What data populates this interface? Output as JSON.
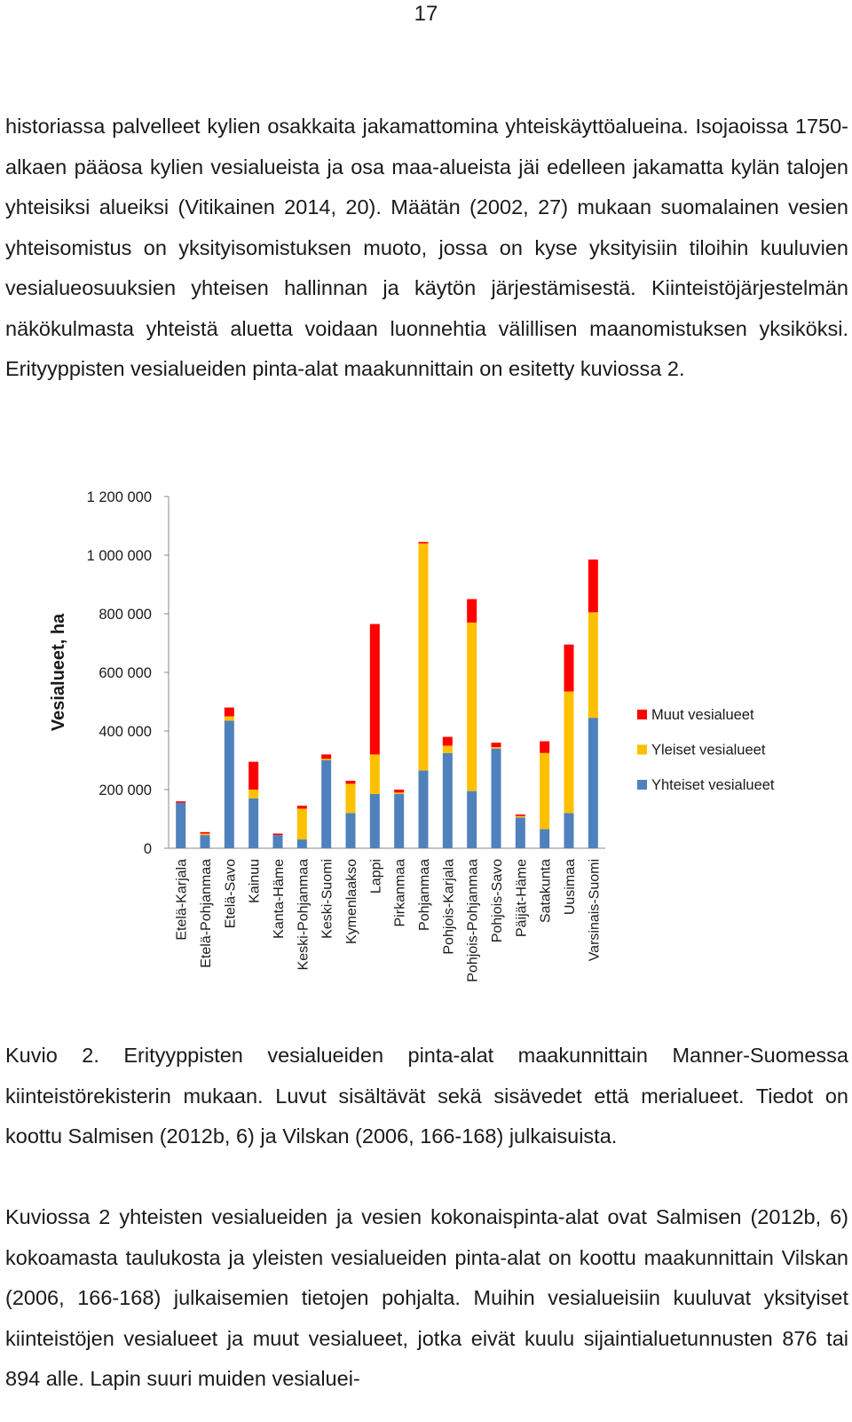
{
  "page_number": "17",
  "paragraph_1": "historiassa palvelleet kylien osakkaita jakamattomina yhteiskäyttöalueina. Isojaoissa 1750-alkaen pääosa kylien vesialueista ja osa maa-alueista jäi edelleen jakamatta kylän talojen yhteisiksi alueiksi (Vitikainen 2014, 20). Määtän (2002, 27) mukaan suomalainen vesien yhteisomistus on yksityisomistuksen muoto, jossa on kyse yksityisiin tiloihin kuuluvien vesialueosuuksien yhteisen hallinnan ja käytön järjestämisestä. Kiinteistöjärjestelmän näkökulmasta yhteistä aluetta voidaan luonnehtia välillisen maanomistuksen yksiköksi. Erityyppisten vesialueiden pinta-alat maakunnittain on esitetty kuviossa 2.",
  "chart_data": {
    "type": "bar",
    "stacked": true,
    "ylabel": "Vesialueet, ha",
    "xlabel": "",
    "ylim": [
      0,
      1200000
    ],
    "y_ticks": [
      0,
      200000,
      400000,
      600000,
      800000,
      1000000,
      1200000
    ],
    "y_tick_labels": [
      "0",
      "200 000",
      "400 000",
      "600 000",
      "800 000",
      "1 000 000",
      "1 200 000"
    ],
    "grid": false,
    "legend_position": "right",
    "categories": [
      "Etelä-Karjala",
      "Etelä-Pohjanmaa",
      "Etelä-Savo",
      "Kainuu",
      "Kanta-Häme",
      "Keski-Pohjanmaa",
      "Keski-Suomi",
      "Kymenlaakso",
      "Lappi",
      "Pirkanmaa",
      "Pohjanmaa",
      "Pohjois-Karjala",
      "Pohjois-Pohjanmaa",
      "Pohjois-Savo",
      "Päijät-Häme",
      "Satakunta",
      "Uusimaa",
      "Varsinais-Suomi"
    ],
    "series": [
      {
        "name": "Yhteiset vesialueet",
        "color": "#4f81bd",
        "values": [
          155000,
          45000,
          435000,
          170000,
          45000,
          30000,
          300000,
          120000,
          185000,
          185000,
          265000,
          325000,
          195000,
          340000,
          105000,
          65000,
          120000,
          445000
        ]
      },
      {
        "name": "Yleiset vesialueet",
        "color": "#ffc000",
        "values": [
          0,
          5000,
          15000,
          30000,
          0,
          105000,
          5000,
          100000,
          135000,
          5000,
          775000,
          25000,
          575000,
          5000,
          5000,
          260000,
          415000,
          360000
        ]
      },
      {
        "name": "Muut vesialueet",
        "color": "#ff0000",
        "values": [
          5000,
          5000,
          30000,
          95000,
          5000,
          10000,
          15000,
          10000,
          445000,
          10000,
          5000,
          30000,
          80000,
          15000,
          5000,
          40000,
          160000,
          180000
        ]
      }
    ]
  },
  "caption": "Kuvio 2. Erityyppisten vesialueiden pinta-alat maakunnittain Manner-Suomessa kiinteistörekisterin mukaan. Luvut sisältävät sekä sisävedet että merialueet. Tiedot on koottu Salmisen (2012b, 6) ja Vilskan (2006, 166-168) julkaisuista.",
  "paragraph_2": "Kuviossa 2 yhteisten vesialueiden ja vesien kokonaispinta-alat ovat Salmisen (2012b, 6) kokoamasta taulukosta ja yleisten vesialueiden pinta-alat on koottu maakunnittain Vilskan (2006, 166-168) julkaisemien tietojen pohjalta. Muihin vesialueisiin kuuluvat yksityiset kiinteistöjen vesialueet ja muut vesialueet, jotka eivät kuulu sijaintialuetunnusten 876 tai 894 alle. Lapin suuri muiden vesialuei-"
}
